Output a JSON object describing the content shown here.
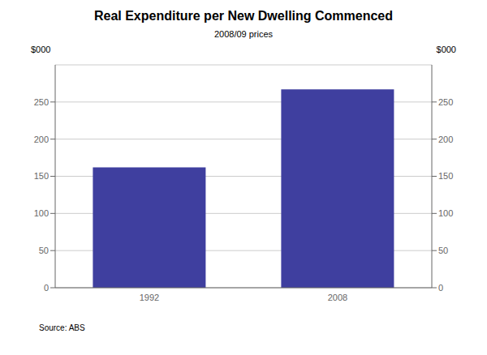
{
  "chart_data": {
    "type": "bar",
    "title": "Real Expenditure per New Dwelling Commenced",
    "subtitle": "2008/09 prices",
    "categories": [
      "1992",
      "2008"
    ],
    "values": [
      162,
      267
    ],
    "color": "#3f3f9f",
    "ylim": [
      0,
      300
    ],
    "yticks": [
      0,
      50,
      100,
      150,
      200,
      250
    ],
    "ylabel": "$000",
    "y2lim": [
      0,
      300
    ],
    "y2ticks": [
      0,
      50,
      100,
      150,
      200,
      250
    ],
    "y2label": "$000",
    "annotation": "Source: ABS",
    "grid": true
  }
}
